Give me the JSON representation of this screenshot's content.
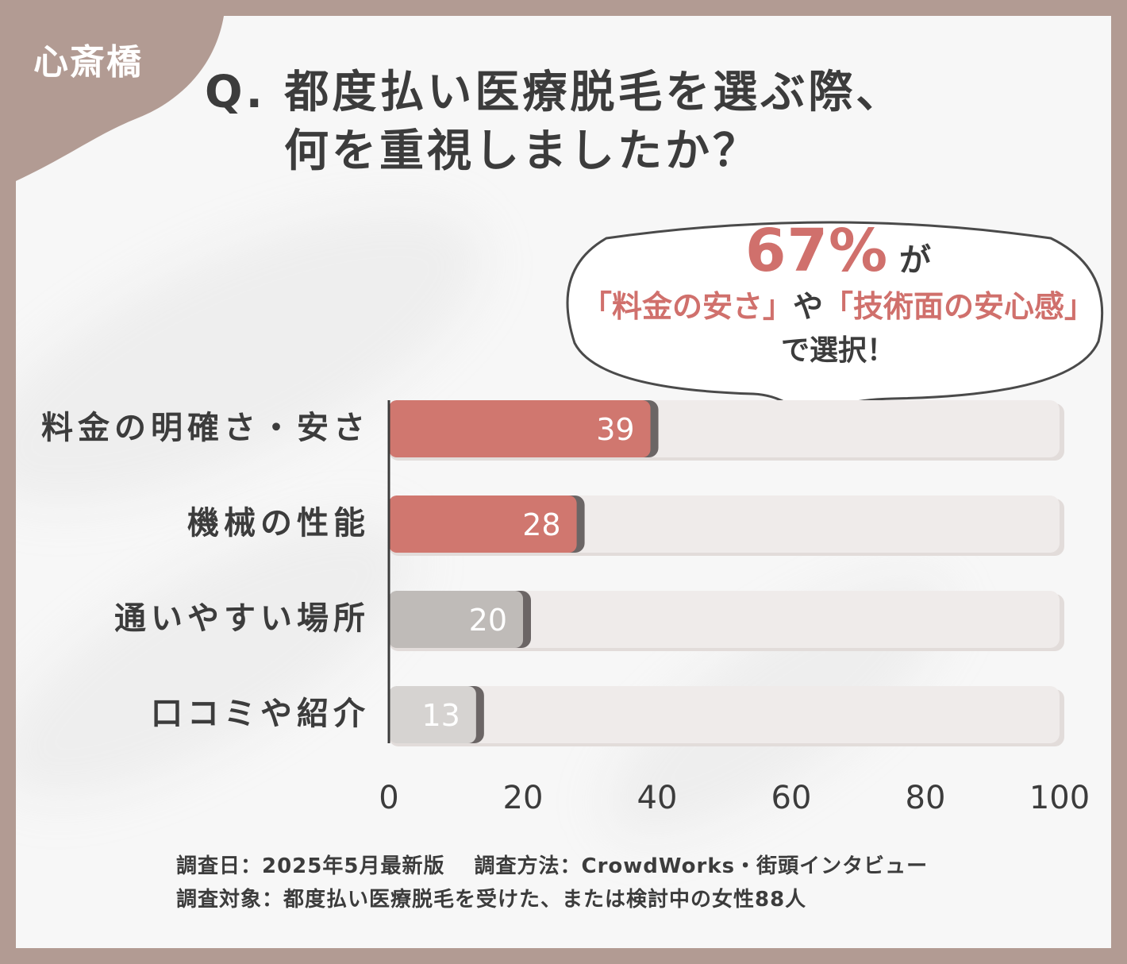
{
  "badge": "心斎橋",
  "title": {
    "line1": "Q. 都度払い医療脱毛を選ぶ際、",
    "line2": "何を重視しましたか？"
  },
  "callout": {
    "percent": "67%",
    "ga": "が",
    "item1": "「料金の安さ」",
    "ya": "や",
    "item2": "「技術面の安心感」",
    "tail": "で選択！"
  },
  "chart_data": {
    "type": "bar",
    "orientation": "horizontal",
    "categories": [
      "料金の明確さ・安さ",
      "機械の性能",
      "通いやすい場所",
      "口コミや紹介"
    ],
    "values": [
      39,
      28,
      20,
      13
    ],
    "data_labels": [
      "39",
      "28",
      "20",
      "13"
    ],
    "bar_colors": [
      "#d0776f",
      "#d0776f",
      "#bfbbb8",
      "#d6d3d1"
    ],
    "track_color": "#efebea",
    "xlim": [
      0,
      100
    ],
    "xticks": [
      "0",
      "20",
      "40",
      "60",
      "80",
      "100"
    ],
    "grid": false,
    "title": "",
    "xlabel": "",
    "ylabel": ""
  },
  "footer": {
    "line1": "調査日：2025年5月最新版　 調査方法：CrowdWorks・街頭インタビュー",
    "line2": "調査対象：都度払い医療脱毛を受けた、または検討中の女性88人"
  },
  "colors": {
    "frame": "#b29b93",
    "accent": "#d0706c",
    "text": "#3c3c3c"
  }
}
